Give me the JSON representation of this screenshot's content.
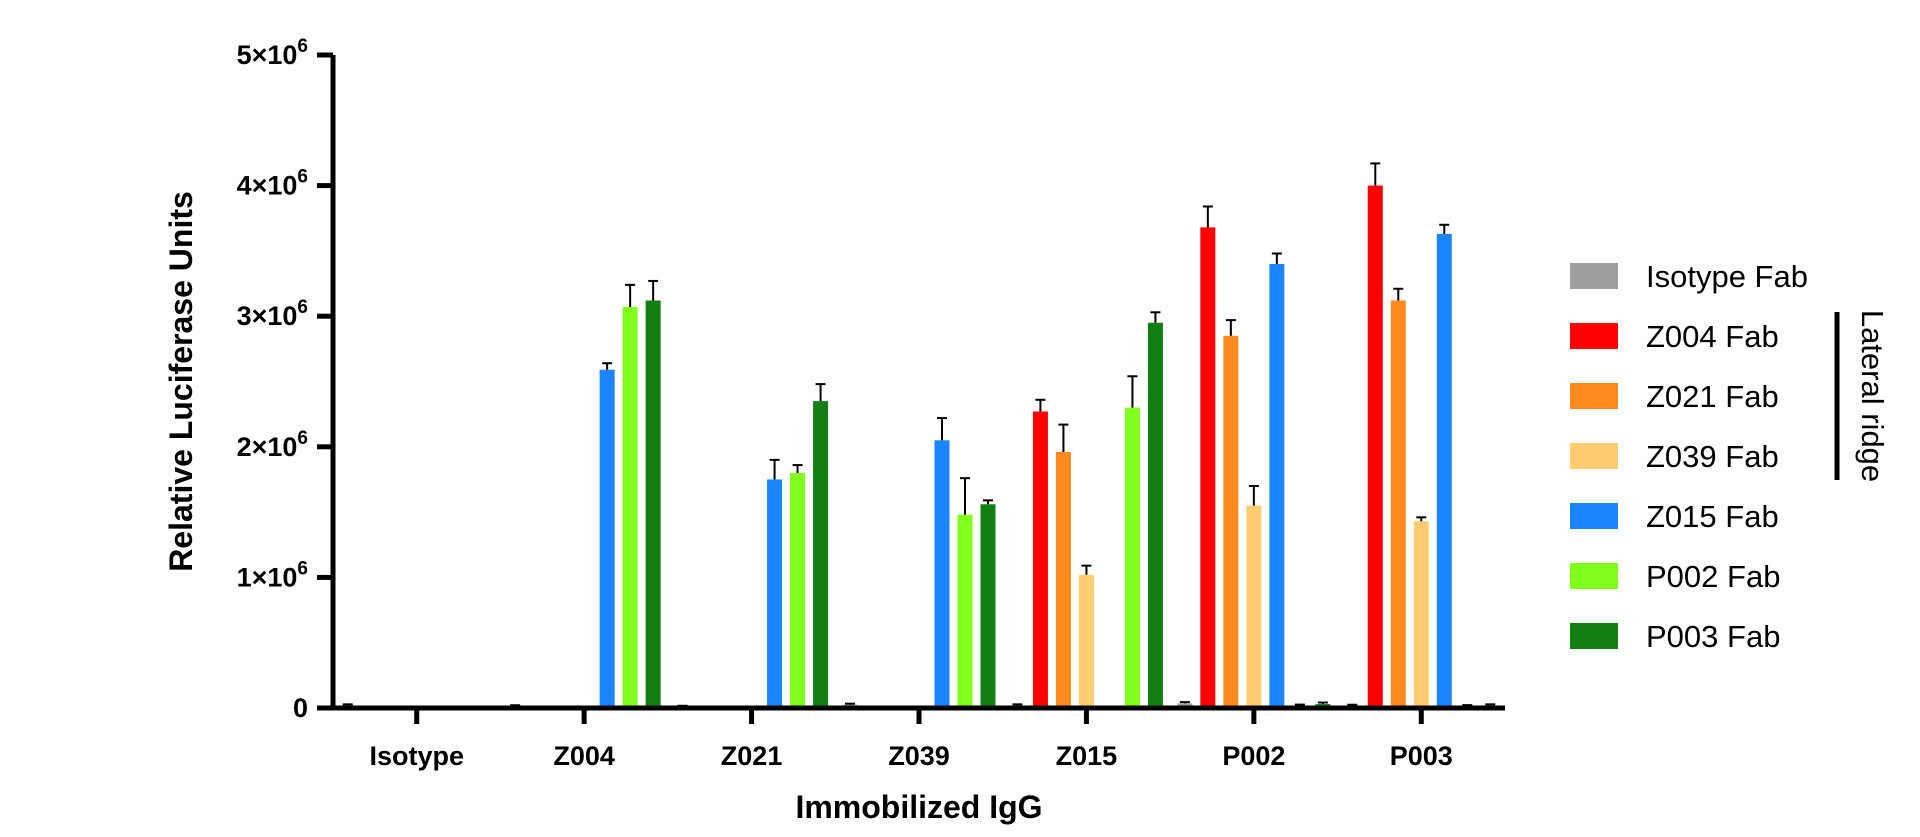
{
  "chart_data": {
    "type": "bar",
    "title": "",
    "xlabel": "Immobilized IgG",
    "ylabel": "Relative Luciferase Units",
    "ylim": [
      0,
      5000000
    ],
    "yticks": [
      {
        "value": 0,
        "label": "0"
      },
      {
        "value": 1000000,
        "base": "1×10",
        "exp": "6"
      },
      {
        "value": 2000000,
        "base": "2×10",
        "exp": "6"
      },
      {
        "value": 3000000,
        "base": "3×10",
        "exp": "6"
      },
      {
        "value": 4000000,
        "base": "4×10",
        "exp": "6"
      },
      {
        "value": 5000000,
        "base": "5×10",
        "exp": "6"
      }
    ],
    "categories": [
      "Isotype",
      "Z004",
      "Z021",
      "Z039",
      "Z015",
      "P002",
      "P003"
    ],
    "series": [
      {
        "name": "Isotype Fab",
        "color": "#9e9e9e",
        "values": [
          20000,
          15000,
          12000,
          25000,
          20000,
          35000,
          18000
        ],
        "errors": [
          8000,
          6000,
          5000,
          8000,
          8000,
          10000,
          7000
        ]
      },
      {
        "name": "Z004 Fab",
        "color": "#ff0000",
        "values": [
          0,
          0,
          0,
          0,
          2270000,
          3680000,
          4000000
        ],
        "errors": [
          5000,
          5000,
          5000,
          5000,
          90000,
          160000,
          170000
        ]
      },
      {
        "name": "Z021 Fab",
        "color": "#ff8a1f",
        "values": [
          0,
          0,
          0,
          0,
          1960000,
          2850000,
          3120000
        ],
        "errors": [
          5000,
          5000,
          5000,
          5000,
          210000,
          120000,
          90000
        ]
      },
      {
        "name": "Z039 Fab",
        "color": "#ffcc70",
        "values": [
          0,
          0,
          0,
          0,
          1020000,
          1550000,
          1430000
        ],
        "errors": [
          5000,
          5000,
          5000,
          5000,
          70000,
          150000,
          30000
        ]
      },
      {
        "name": "Z015 Fab",
        "color": "#1a85ff",
        "values": [
          0,
          2590000,
          1750000,
          2050000,
          0,
          3400000,
          3630000
        ],
        "errors": [
          5000,
          50000,
          150000,
          170000,
          5000,
          80000,
          70000
        ]
      },
      {
        "name": "P002 Fab",
        "color": "#80ff1a",
        "values": [
          0,
          3070000,
          1800000,
          1480000,
          2300000,
          18000,
          15000
        ],
        "errors": [
          5000,
          170000,
          60000,
          280000,
          240000,
          8000,
          7000
        ]
      },
      {
        "name": "P003 Fab",
        "color": "#118011",
        "values": [
          0,
          3120000,
          2350000,
          1560000,
          2950000,
          30000,
          20000
        ],
        "errors": [
          5000,
          150000,
          130000,
          30000,
          80000,
          12000,
          8000
        ]
      }
    ],
    "legend_position": "right",
    "bracket": {
      "label": "Lateral ridge",
      "series": [
        "Z004 Fab",
        "Z021 Fab",
        "Z039 Fab"
      ]
    }
  }
}
